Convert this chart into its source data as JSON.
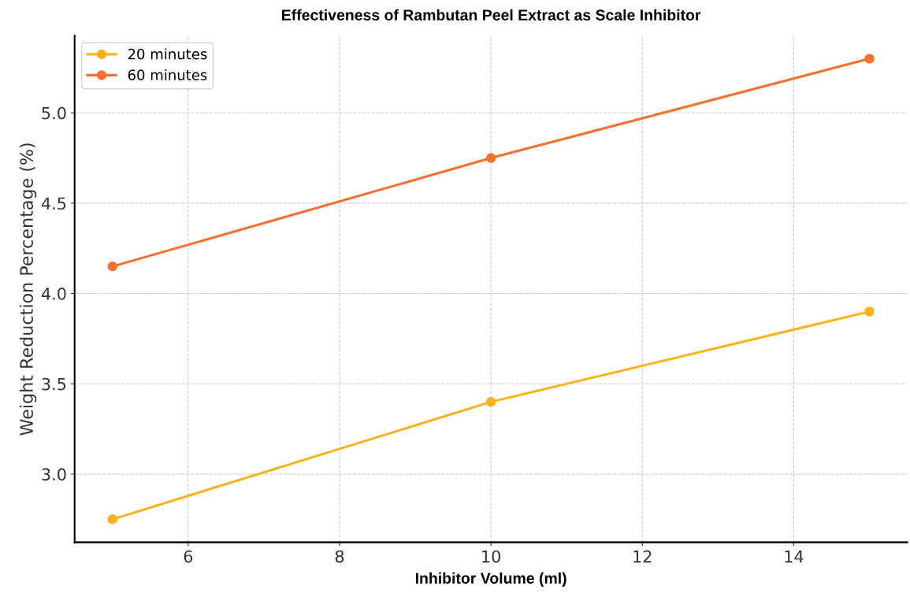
{
  "chart_data": {
    "type": "line",
    "title": "Effectiveness of Rambutan Peel Extract as Scale Inhibitor",
    "xlabel": "Inhibitor Volume (ml)",
    "ylabel": "Weight Reduction Percentage (%)",
    "x": [
      5,
      10,
      15
    ],
    "series": [
      {
        "name": "20 minutes",
        "color": "#fbb21c",
        "values": [
          2.75,
          3.4,
          3.9
        ]
      },
      {
        "name": "60 minutes",
        "color": "#f7702e",
        "values": [
          4.15,
          4.75,
          5.3
        ]
      }
    ],
    "xlim": [
      4.5,
      15.5
    ],
    "ylim": [
      2.6225,
      5.4275
    ],
    "xticks": [
      6,
      8,
      10,
      12,
      14
    ],
    "yticks": [
      {
        "value": 3,
        "label": "3.0"
      },
      {
        "value": 3.5,
        "label": "3.5"
      },
      {
        "value": 4,
        "label": "4.0"
      },
      {
        "value": 4.5,
        "label": "4.5"
      },
      {
        "value": 5,
        "label": "5.0"
      }
    ],
    "grid": true,
    "legend": "top left",
    "marker": "circle",
    "line_style": "solid"
  }
}
